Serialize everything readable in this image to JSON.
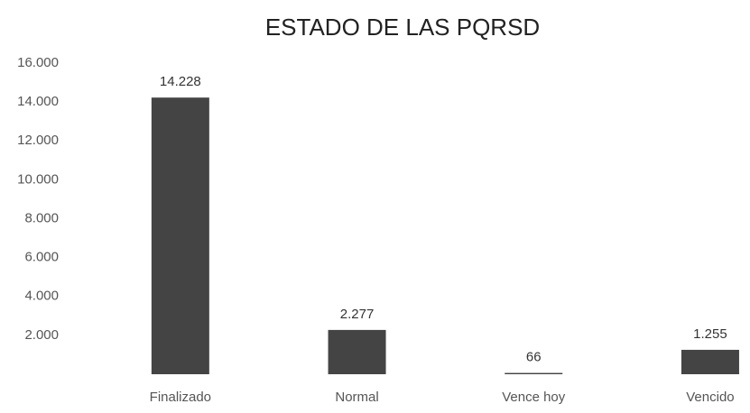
{
  "chart_data": {
    "type": "bar",
    "title": "ESTADO DE LAS PQRSD",
    "categories": [
      "Finalizado",
      "Normal",
      "Vence hoy",
      "Vencido"
    ],
    "values": [
      14228,
      2277,
      66,
      1255
    ],
    "value_labels": [
      "14.228",
      "2.277",
      "66",
      "1.255"
    ],
    "color": "#444444",
    "ylim": [
      0,
      16000
    ],
    "yticks": [
      {
        "value": 2000,
        "label": "2.000"
      },
      {
        "value": 4000,
        "label": "4.000"
      },
      {
        "value": 6000,
        "label": "6.000"
      },
      {
        "value": 8000,
        "label": "8.000"
      },
      {
        "value": 10000,
        "label": "10.000"
      },
      {
        "value": 12000,
        "label": "12.000"
      },
      {
        "value": 14000,
        "label": "14.000"
      },
      {
        "value": 16000,
        "label": "16.000"
      }
    ],
    "grid": false
  }
}
